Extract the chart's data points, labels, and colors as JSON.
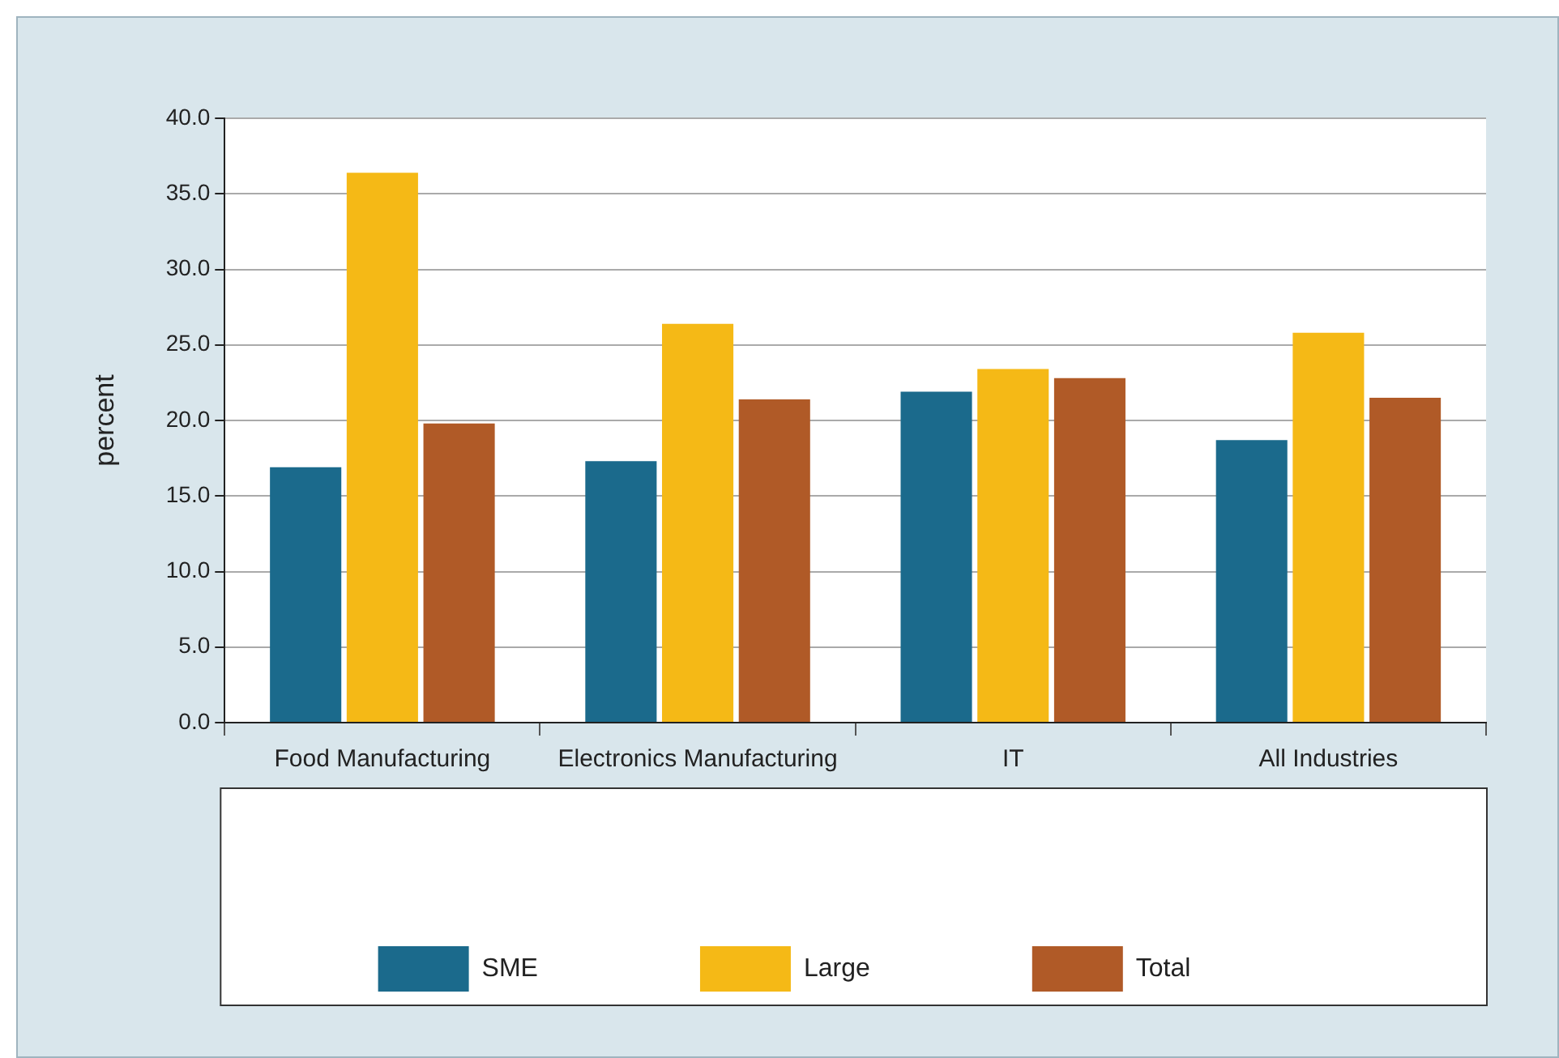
{
  "chart_data": {
    "type": "bar",
    "ylabel": "percent",
    "categories": [
      "Food Manufacturing",
      "Electronics Manufacturing",
      "IT",
      "All Industries"
    ],
    "series": [
      {
        "name": "SME",
        "color": "#1b6a8c",
        "values": [
          16.9,
          17.3,
          21.9,
          18.7
        ]
      },
      {
        "name": "Large",
        "color": "#f5b916",
        "values": [
          36.4,
          26.4,
          23.4,
          25.8
        ]
      },
      {
        "name": "Total",
        "color": "#b05a27",
        "values": [
          19.8,
          21.4,
          22.8,
          21.5
        ]
      }
    ],
    "ylim": [
      0,
      40
    ],
    "yticks": [
      {
        "value": 0,
        "label": "0.0"
      },
      {
        "value": 5,
        "label": "5.0"
      },
      {
        "value": 10,
        "label": "10.0"
      },
      {
        "value": 15,
        "label": "15.0"
      },
      {
        "value": 20,
        "label": "20.0"
      },
      {
        "value": 25,
        "label": "25.0"
      },
      {
        "value": 30,
        "label": "30.0"
      },
      {
        "value": 35,
        "label": "35.0"
      },
      {
        "value": 40,
        "label": "40.0"
      }
    ],
    "grid": "y",
    "legend": "bottom"
  }
}
